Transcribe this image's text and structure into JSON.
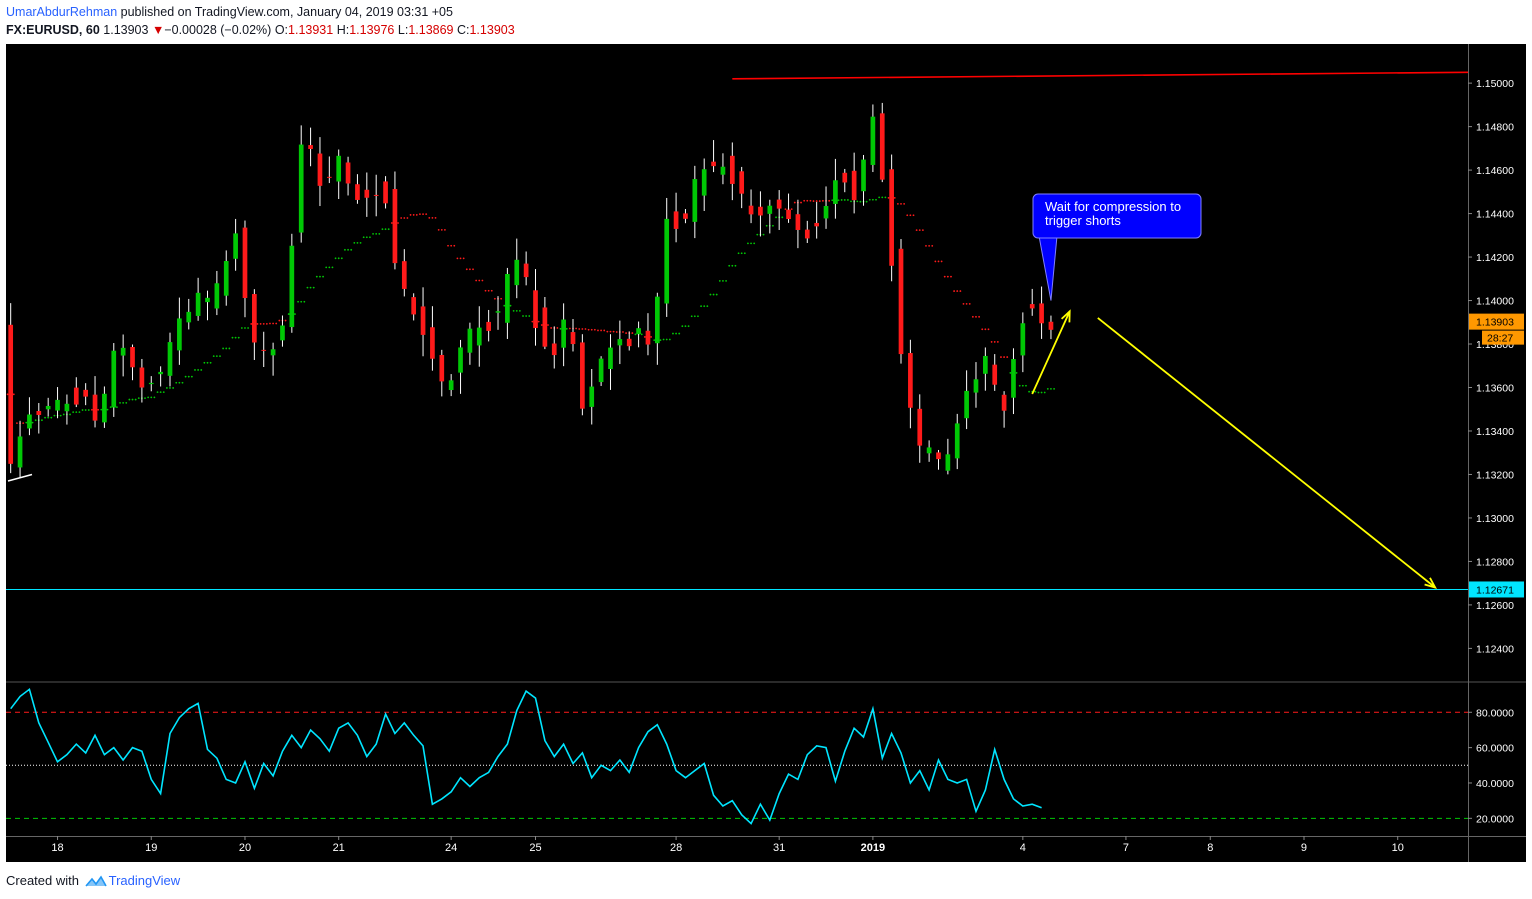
{
  "header": {
    "author": "UmarAbdurRehman",
    "published_text": " published on TradingView.com, January 04, 2019 03:31 +05",
    "symbol": "FX:EURUSD, 60",
    "last": "1.13903",
    "change": "−0.00028 (−0.02%)",
    "open_label": "O:",
    "open": "1.13931",
    "high_label": "H:",
    "high": "1.13976",
    "low_label": "L:",
    "low": "1.13869",
    "close_label": "C:",
    "close": "1.13903"
  },
  "footer": {
    "created_with": "Created with",
    "brand": "TradingView"
  },
  "colors": {
    "background": "#000000",
    "bull": "#00c805",
    "bear": "#ff1a1a",
    "wick": "#ffffff",
    "ma_up": "#00c805",
    "ma_down": "#ff1a1a",
    "resistance": "#ff0000",
    "target": "#00e5ff",
    "arrow": "#ffff00",
    "rsi": "#00e5ff",
    "price_tag": "#ff9800",
    "callout": "#0000ff",
    "axis_text": "#ffffff"
  },
  "chart_data": [
    {
      "type": "candlestick",
      "title": "EURUSD, 60",
      "ylim": [
        1.1225,
        1.1518
      ],
      "y_ticks": [
        1.15,
        1.148,
        1.146,
        1.144,
        1.142,
        1.14,
        1.138,
        1.136,
        1.134,
        1.132,
        1.13,
        1.128,
        1.126,
        1.124
      ],
      "y_tick_labels": [
        "1.15000",
        "1.14800",
        "1.14600",
        "1.14400",
        "1.14200",
        "1.14000",
        "1.13800",
        "1.13600",
        "1.13400",
        "1.13200",
        "1.13000",
        "1.12800",
        "1.12600",
        "1.12400"
      ],
      "x_ticks": [
        5,
        15,
        25,
        35,
        47,
        56,
        71,
        82,
        92,
        108,
        119,
        128,
        138,
        148
      ],
      "x_tick_labels": [
        "18",
        "19",
        "20",
        "21",
        "24",
        "25",
        "28",
        "31",
        "2019",
        "4",
        "7",
        "8",
        "9",
        "10"
      ],
      "bar_count": 156,
      "price_waypoints": [
        [
          0,
          1.1318
        ],
        [
          2,
          1.1345
        ],
        [
          5,
          1.1352
        ],
        [
          8,
          1.1358
        ],
        [
          10,
          1.1342
        ],
        [
          12,
          1.1385
        ],
        [
          14,
          1.1365
        ],
        [
          16,
          1.1362
        ],
        [
          18,
          1.1385
        ],
        [
          20,
          1.1402
        ],
        [
          22,
          1.1398
        ],
        [
          24,
          1.1428
        ],
        [
          25,
          1.143
        ],
        [
          26,
          1.1375
        ],
        [
          28,
          1.1378
        ],
        [
          30,
          1.1392
        ],
        [
          31,
          1.1468
        ],
        [
          32,
          1.148
        ],
        [
          34,
          1.1445
        ],
        [
          35,
          1.147
        ],
        [
          37,
          1.1448
        ],
        [
          39,
          1.1445
        ],
        [
          40,
          1.146
        ],
        [
          42,
          1.1408
        ],
        [
          44,
          1.1395
        ],
        [
          45,
          1.1375
        ],
        [
          47,
          1.1358
        ],
        [
          49,
          1.1382
        ],
        [
          51,
          1.1388
        ],
        [
          53,
          1.1395
        ],
        [
          54,
          1.1425
        ],
        [
          56,
          1.1402
        ],
        [
          57,
          1.1382
        ],
        [
          59,
          1.1375
        ],
        [
          60,
          1.1402
        ],
        [
          61,
          1.135
        ],
        [
          62,
          1.1352
        ],
        [
          64,
          1.1375
        ],
        [
          66,
          1.1382
        ],
        [
          68,
          1.139
        ],
        [
          69,
          1.1365
        ],
        [
          70,
          1.1442
        ],
        [
          72,
          1.1435
        ],
        [
          73,
          1.1442
        ],
        [
          74,
          1.146
        ],
        [
          75,
          1.1462
        ],
        [
          77,
          1.1462
        ],
        [
          78,
          1.145
        ],
        [
          80,
          1.144
        ],
        [
          82,
          1.1442
        ],
        [
          84,
          1.1438
        ],
        [
          86,
          1.1432
        ],
        [
          87,
          1.144
        ],
        [
          88,
          1.1455
        ],
        [
          89,
          1.1465
        ],
        [
          90,
          1.145
        ],
        [
          91,
          1.1448
        ],
        [
          92,
          1.148
        ],
        [
          93,
          1.1483
        ],
        [
          94,
          1.143
        ],
        [
          95,
          1.1408
        ],
        [
          96,
          1.1352
        ],
        [
          97,
          1.1342
        ],
        [
          98,
          1.1325
        ],
        [
          99,
          1.1335
        ],
        [
          100,
          1.131
        ],
        [
          101,
          1.1342
        ],
        [
          102,
          1.1352
        ],
        [
          103,
          1.1362
        ],
        [
          104,
          1.1368
        ],
        [
          105,
          1.1378
        ],
        [
          106,
          1.1345
        ],
        [
          107,
          1.1362
        ],
        [
          108,
          1.139
        ],
        [
          109,
          1.1398
        ],
        [
          110,
          1.1394
        ],
        [
          111,
          1.139
        ]
      ],
      "last_price": "1.13903",
      "countdown": "28:27",
      "levels": [
        {
          "name": "resistance",
          "value": 1.1505,
          "from_bar": 77
        },
        {
          "name": "target",
          "value": 1.12671,
          "label": "1.12671"
        }
      ],
      "moving_average": "dotted, green below price / red above price",
      "annotations": [
        {
          "text": "Wait for compression to\ntrigger shorts",
          "points_to": [
            111,
            1.14
          ],
          "color": "#0000ff"
        },
        {
          "type": "arrow",
          "from": [
            109,
            1.1357
          ],
          "to": [
            113,
            1.1395
          ],
          "color": "#ffff00"
        },
        {
          "type": "arrow",
          "from": [
            116,
            1.1392
          ],
          "to": [
            152,
            1.1268
          ],
          "color": "#ffff00"
        }
      ]
    },
    {
      "type": "line",
      "title": "RSI",
      "ylim": [
        10,
        96
      ],
      "y_ticks": [
        80,
        60,
        40,
        20
      ],
      "y_tick_labels": [
        "80.0000",
        "60.0000",
        "40.0000",
        "20.0000"
      ],
      "bands": {
        "overbought": 80,
        "overbought_color": "#ff1a1a",
        "middle": 50,
        "middle_color": "#ffffff",
        "oversold": 20,
        "oversold_color": "#00c805"
      },
      "values": [
        82,
        89,
        93,
        74,
        63,
        52,
        56,
        62,
        57,
        67,
        56,
        60,
        53,
        60,
        58,
        42,
        34,
        68,
        77,
        82,
        85,
        59,
        54,
        42,
        40,
        52,
        37,
        51,
        44,
        58,
        67,
        60,
        70,
        65,
        58,
        71,
        74,
        67,
        55,
        62,
        79,
        68,
        74,
        67,
        61,
        28,
        31,
        35,
        43,
        38,
        43,
        46,
        55,
        62,
        81,
        92,
        88,
        64,
        55,
        62,
        51,
        57,
        43,
        50,
        47,
        53,
        46,
        60,
        69,
        73,
        62,
        47,
        43,
        47,
        51,
        33,
        27,
        30,
        22,
        17,
        28,
        19,
        34,
        45,
        42,
        56,
        61,
        60,
        41,
        58,
        71,
        66,
        82,
        54,
        68,
        57,
        40,
        47,
        36,
        53,
        42,
        40,
        42,
        24,
        36,
        59,
        42,
        31,
        27,
        28,
        26
      ]
    }
  ]
}
